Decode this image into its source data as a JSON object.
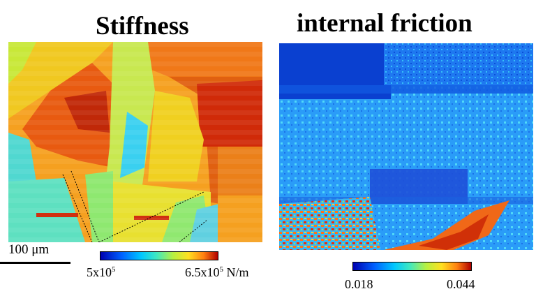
{
  "titles": {
    "left": "Stiffness",
    "right": "internal friction"
  },
  "scale_bar": {
    "label": "100 μm"
  },
  "colorbars": {
    "stiffness": {
      "min_mantissa": "5x10",
      "min_exponent": "5",
      "max_mantissa": "6.5x10",
      "max_exponent": "5",
      "unit": " N/m"
    },
    "friction": {
      "min": "0.018",
      "max": "0.044"
    }
  },
  "colors": {
    "colormap": [
      "#0000b0",
      "#0060ff",
      "#00c8ff",
      "#40e8c0",
      "#b8f040",
      "#ffe020",
      "#ff8010",
      "#b00000"
    ]
  },
  "images": {
    "left": "stiffness map of grains: orange and dark red regions with cyan and yellow-green grains, dotted boundary lines",
    "right": "internal friction map: mostly blue/cyan with orange-red speckled band at bottom"
  }
}
